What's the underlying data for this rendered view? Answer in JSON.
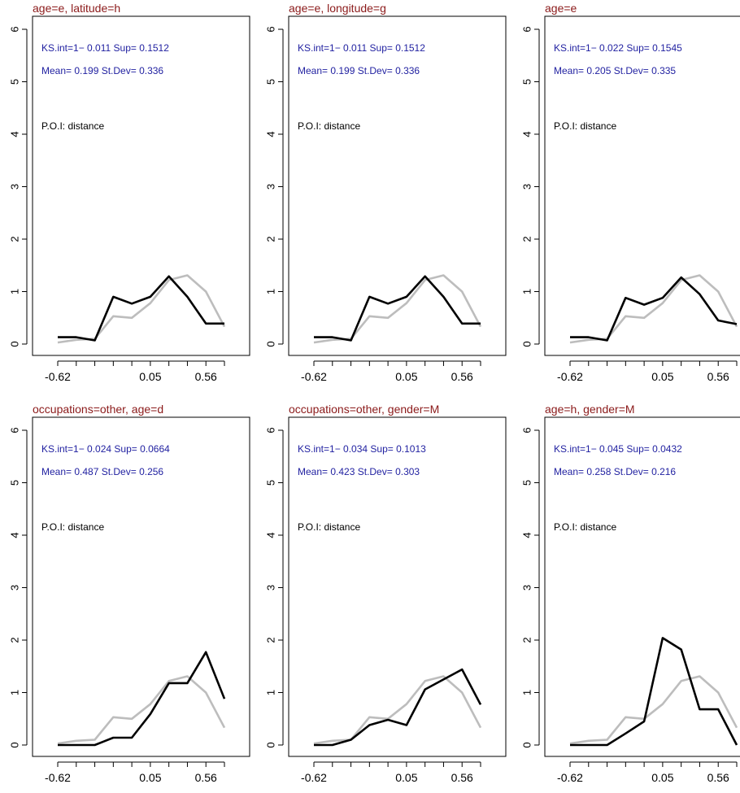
{
  "colors": {
    "title": "#8B1A1A",
    "stats": "#1F1FA0",
    "reference_line": "#bdbdbd",
    "observed_line": "#000000"
  },
  "chart_data": [
    {
      "type": "line",
      "title": "age=e, latitude=h",
      "stats_line1": "KS.int=1− 0.011 Sup= 0.1512",
      "stats_line2": "Mean= 0.199 St.Dev= 0.336",
      "annotation": "P.O.I: distance",
      "x_tick_labels": [
        "-0.62",
        "0.05",
        "0.56"
      ],
      "y_ticks": [
        0,
        1,
        2,
        3,
        4,
        5,
        6
      ],
      "ylim": [
        0,
        6
      ],
      "series": [
        {
          "values": [
            0.03,
            0.08,
            0.1,
            0.53,
            0.5,
            0.78,
            1.22,
            1.31,
            1.0,
            0.33
          ]
        },
        {
          "values": [
            0.13,
            0.13,
            0.07,
            0.9,
            0.77,
            0.9,
            1.29,
            0.9,
            0.39,
            0.39
          ]
        }
      ]
    },
    {
      "type": "line",
      "title": "age=e, longitude=g",
      "stats_line1": "KS.int=1− 0.011 Sup= 0.1512",
      "stats_line2": "Mean= 0.199 St.Dev= 0.336",
      "annotation": "P.O.I: distance",
      "x_tick_labels": [
        "-0.62",
        "0.05",
        "0.56"
      ],
      "y_ticks": [
        0,
        1,
        2,
        3,
        4,
        5,
        6
      ],
      "ylim": [
        0,
        6
      ],
      "series": [
        {
          "values": [
            0.03,
            0.08,
            0.1,
            0.53,
            0.5,
            0.78,
            1.22,
            1.31,
            1.0,
            0.33
          ]
        },
        {
          "values": [
            0.13,
            0.13,
            0.07,
            0.9,
            0.77,
            0.9,
            1.29,
            0.9,
            0.39,
            0.39
          ]
        }
      ]
    },
    {
      "type": "line",
      "title": "age=e",
      "stats_line1": "KS.int=1− 0.022 Sup= 0.1545",
      "stats_line2": "Mean= 0.205 St.Dev= 0.335",
      "annotation": "P.O.I: distance",
      "x_tick_labels": [
        "-0.62",
        "0.05",
        "0.56"
      ],
      "y_ticks": [
        0,
        1,
        2,
        3,
        4,
        5,
        6
      ],
      "ylim": [
        0,
        6
      ],
      "series": [
        {
          "values": [
            0.03,
            0.08,
            0.1,
            0.53,
            0.5,
            0.78,
            1.22,
            1.31,
            1.0,
            0.33
          ]
        },
        {
          "values": [
            0.13,
            0.13,
            0.07,
            0.88,
            0.75,
            0.88,
            1.27,
            0.95,
            0.45,
            0.38
          ]
        }
      ]
    },
    {
      "type": "line",
      "title": "occupations=other, age=d",
      "stats_line1": "KS.int=1− 0.024 Sup= 0.0664",
      "stats_line2": "Mean= 0.487 St.Dev= 0.256",
      "annotation": "P.O.I: distance",
      "x_tick_labels": [
        "-0.62",
        "0.05",
        "0.56"
      ],
      "y_ticks": [
        0,
        1,
        2,
        3,
        4,
        5,
        6
      ],
      "ylim": [
        0,
        6
      ],
      "series": [
        {
          "values": [
            0.03,
            0.08,
            0.1,
            0.53,
            0.5,
            0.78,
            1.22,
            1.31,
            1.0,
            0.33
          ]
        },
        {
          "values": [
            0.0,
            0.0,
            0.0,
            0.14,
            0.14,
            0.59,
            1.18,
            1.18,
            1.77,
            0.88
          ]
        }
      ]
    },
    {
      "type": "line",
      "title": "occupations=other, gender=M",
      "stats_line1": "KS.int=1− 0.034 Sup= 0.1013",
      "stats_line2": "Mean= 0.423 St.Dev= 0.303",
      "annotation": "P.O.I: distance",
      "x_tick_labels": [
        "-0.62",
        "0.05",
        "0.56"
      ],
      "y_ticks": [
        0,
        1,
        2,
        3,
        4,
        5,
        6
      ],
      "ylim": [
        0,
        6
      ],
      "series": [
        {
          "values": [
            0.03,
            0.08,
            0.1,
            0.53,
            0.5,
            0.78,
            1.22,
            1.31,
            1.0,
            0.33
          ]
        },
        {
          "values": [
            0.0,
            0.0,
            0.1,
            0.38,
            0.48,
            0.38,
            1.06,
            1.25,
            1.44,
            0.77
          ]
        }
      ]
    },
    {
      "type": "line",
      "title": "age=h, gender=M",
      "stats_line1": "KS.int=1− 0.045 Sup= 0.0432",
      "stats_line2": "Mean= 0.258 St.Dev= 0.216",
      "annotation": "P.O.I: distance",
      "x_tick_labels": [
        "-0.62",
        "0.05",
        "0.56"
      ],
      "y_ticks": [
        0,
        1,
        2,
        3,
        4,
        5,
        6
      ],
      "ylim": [
        0,
        6
      ],
      "series": [
        {
          "values": [
            0.03,
            0.08,
            0.1,
            0.53,
            0.5,
            0.78,
            1.22,
            1.31,
            1.0,
            0.33
          ]
        },
        {
          "values": [
            0.0,
            0.0,
            0.0,
            0.22,
            0.45,
            2.04,
            1.82,
            0.68,
            0.68,
            0.0
          ]
        }
      ]
    }
  ]
}
